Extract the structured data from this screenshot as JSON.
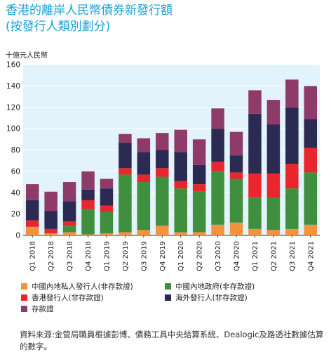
{
  "title_line1": "香港的離岸人民幣債券新發行額",
  "title_line2": "(按發行人類別劃分)",
  "unit": "十億元人民幣",
  "source": "資料來源:金管局職員根據彭博、債務工具中央結算系統、Dealogic及路透社數據估算的數字。",
  "chart_data": {
    "type": "bar",
    "stacked": true,
    "ylim": [
      0,
      160
    ],
    "yticks": [
      0,
      20,
      40,
      60,
      80,
      100,
      120,
      140,
      160
    ],
    "grid": true,
    "categories": [
      "Q1 2018",
      "Q2 2018",
      "Q3 2018",
      "Q4 2018",
      "Q1 2019",
      "Q2 2019",
      "Q3 2019",
      "Q4 2019",
      "Q1 2020",
      "Q2 2020",
      "Q3 2020",
      "Q4 2020",
      "Q1 2021",
      "Q2 2021",
      "Q3 2021",
      "Q4 2021"
    ],
    "series": [
      {
        "name": "中國內地私人發行人(非存款證)",
        "color": "#f5923e",
        "values": [
          8,
          2,
          3,
          1,
          2,
          3,
          5,
          9,
          3,
          3,
          10,
          12,
          6,
          5,
          6,
          10
        ]
      },
      {
        "name": "中國內地政府(非存款證)",
        "color": "#3f8f3f",
        "values": [
          0,
          0,
          6,
          24,
          20,
          54,
          45,
          46,
          41,
          38,
          50,
          41,
          30,
          30,
          38,
          49
        ]
      },
      {
        "name": "香港發行人(非存款證)",
        "color": "#e8262b",
        "values": [
          6,
          4,
          4,
          8,
          6,
          6,
          7,
          8,
          7,
          7,
          9,
          6,
          22,
          23,
          23,
          23
        ]
      },
      {
        "name": "海外發行人(非存款證)",
        "color": "#2b2a52",
        "values": [
          19,
          17,
          19,
          10,
          16,
          24,
          21,
          17,
          27,
          18,
          31,
          16,
          56,
          46,
          53,
          27
        ]
      },
      {
        "name": "存款證",
        "color": "#8e3b6a",
        "values": [
          15,
          18,
          18,
          17,
          9,
          8,
          13,
          16,
          21,
          24,
          19,
          22,
          22,
          23,
          26,
          31
        ]
      }
    ]
  },
  "legend": [
    "中國內地私人發行人(非存款證)",
    "中國內地政府(非存款證)",
    "香港發行人(非存款證)",
    "海外發行人(非存款證)",
    "存款證"
  ]
}
